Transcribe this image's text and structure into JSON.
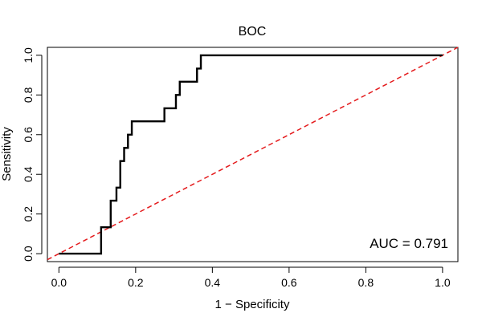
{
  "chart_data": {
    "type": "line",
    "title": "BOC",
    "xlabel": "1 − Specificity",
    "ylabel": "Sensitivity",
    "xlim": [
      -0.03,
      1.04
    ],
    "ylim": [
      -0.04,
      1.04
    ],
    "grid": false,
    "x_ticks": [
      0.0,
      0.2,
      0.4,
      0.6,
      0.8,
      1.0
    ],
    "x_tick_labels": [
      "0.0",
      "0.2",
      "0.4",
      "0.6",
      "0.8",
      "1.0"
    ],
    "y_ticks": [
      0.0,
      0.2,
      0.4,
      0.6,
      0.8,
      1.0
    ],
    "y_tick_labels": [
      "0.0",
      "0.2",
      "0.4",
      "0.6",
      "0.8",
      "1.0"
    ],
    "annotation": "AUC = 0.791",
    "series": [
      {
        "name": "ROC curve",
        "color": "#000000",
        "style": "solid",
        "x": [
          0.0,
          0.11,
          0.11,
          0.135,
          0.135,
          0.15,
          0.15,
          0.16,
          0.16,
          0.17,
          0.17,
          0.175,
          0.175,
          0.18,
          0.18,
          0.19,
          0.19,
          0.275,
          0.275,
          0.305,
          0.305,
          0.315,
          0.315,
          0.36,
          0.36,
          0.37,
          0.37,
          1.0
        ],
        "y": [
          0.0,
          0.0,
          0.133,
          0.133,
          0.267,
          0.267,
          0.333,
          0.333,
          0.467,
          0.467,
          0.533,
          0.533,
          0.533,
          0.533,
          0.6,
          0.6,
          0.667,
          0.667,
          0.733,
          0.733,
          0.8,
          0.8,
          0.867,
          0.867,
          0.933,
          0.933,
          1.0,
          1.0
        ]
      },
      {
        "name": "Chance line",
        "color": "#e41a1c",
        "style": "dashed",
        "x": [
          -0.03,
          1.04
        ],
        "y": [
          -0.03,
          1.04
        ]
      }
    ]
  }
}
